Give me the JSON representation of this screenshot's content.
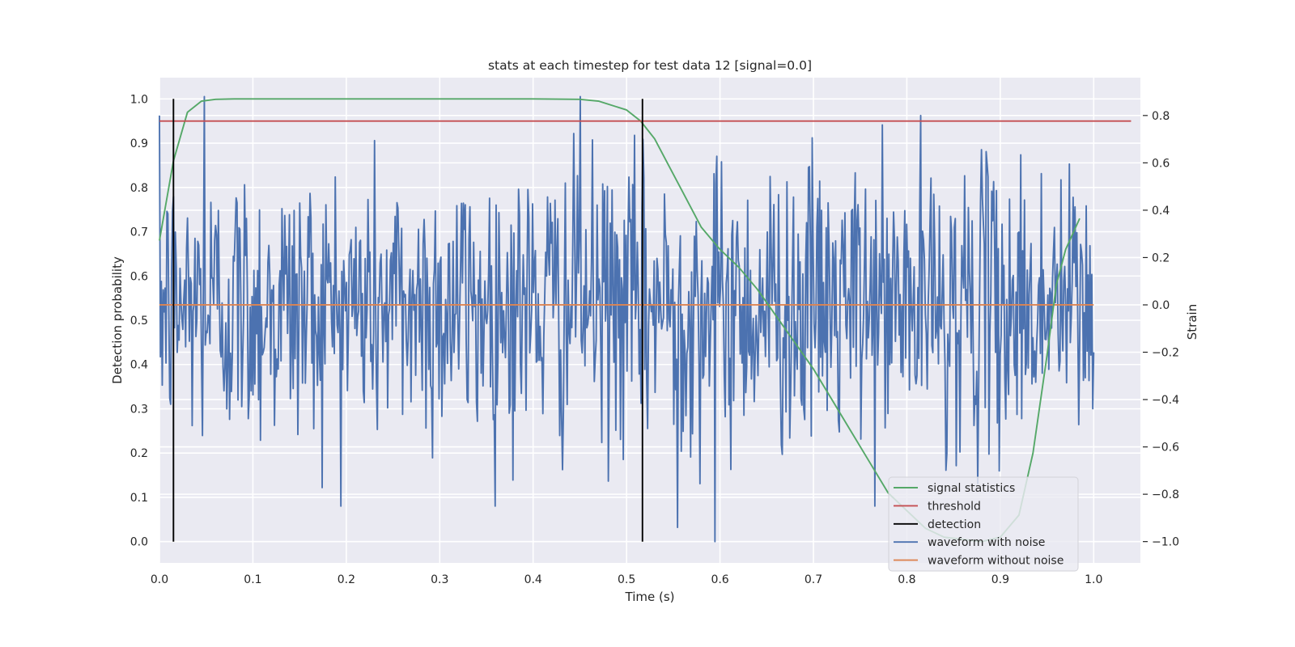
{
  "chart_data": {
    "type": "line",
    "title": "stats at each timestep for test data 12 [signal=0.0]",
    "xlabel": "Time (s)",
    "ylabel": "Detection probability",
    "ylabel_right": "Strain",
    "xlim": [
      0.0,
      1.05
    ],
    "ylim": [
      -0.048,
      1.048
    ],
    "ylim_right": [
      -1.09,
      0.96
    ],
    "x_ticks": [
      0.0,
      0.1,
      0.2,
      0.3,
      0.4,
      0.5,
      0.6,
      0.7,
      0.8,
      0.9,
      1.0
    ],
    "x_tick_labels": [
      "0.0",
      "0.1",
      "0.2",
      "0.3",
      "0.4",
      "0.5",
      "0.6",
      "0.7",
      "0.8",
      "0.9",
      "1.0"
    ],
    "y_ticks": [
      0.0,
      0.1,
      0.2,
      0.3,
      0.4,
      0.5,
      0.6,
      0.7,
      0.8,
      0.9,
      1.0
    ],
    "y_tick_labels": [
      "0.0",
      "0.1",
      "0.2",
      "0.3",
      "0.4",
      "0.5",
      "0.6",
      "0.7",
      "0.8",
      "0.9",
      "1.0"
    ],
    "y_right_ticks": [
      -1.0,
      -0.8,
      -0.6,
      -0.4,
      -0.2,
      0.0,
      0.2,
      0.4,
      0.6,
      0.8
    ],
    "y_right_tick_labels": [
      "−1.0",
      "−0.8",
      "−0.6",
      "−0.4",
      "−0.2",
      "0.0",
      "0.2",
      "0.4",
      "0.6",
      "0.8"
    ],
    "grid": true,
    "legend_position": "lower-right",
    "series": [
      {
        "name": "signal statistics",
        "axis": "left",
        "color": "#55a868",
        "x": [
          0.0,
          0.015,
          0.03,
          0.045,
          0.06,
          0.08,
          0.1,
          0.2,
          0.3,
          0.4,
          0.45,
          0.47,
          0.485,
          0.5,
          0.515,
          0.53,
          0.545,
          0.56,
          0.58,
          0.6,
          0.62,
          0.64,
          0.66,
          0.68,
          0.7,
          0.72,
          0.74,
          0.76,
          0.78,
          0.8,
          0.82,
          0.84,
          0.86,
          0.88,
          0.9,
          0.92,
          0.935,
          0.95,
          0.96,
          0.97,
          0.985
        ],
        "y": [
          0.68,
          0.86,
          0.97,
          0.995,
          0.999,
          1.0,
          1.0,
          1.0,
          1.0,
          1.0,
          0.999,
          0.995,
          0.985,
          0.975,
          0.95,
          0.91,
          0.85,
          0.79,
          0.71,
          0.66,
          0.62,
          0.57,
          0.51,
          0.45,
          0.39,
          0.32,
          0.25,
          0.18,
          0.11,
          0.07,
          0.03,
          0.01,
          0.005,
          0.0,
          0.01,
          0.06,
          0.2,
          0.42,
          0.58,
          0.66,
          0.73
        ]
      },
      {
        "name": "threshold",
        "axis": "left",
        "color": "#c44e52",
        "x": [
          0.0,
          1.04
        ],
        "y": [
          0.95,
          0.95
        ]
      },
      {
        "name": "detection",
        "axis": "left",
        "color": "#000000",
        "x": [
          0.015,
          0.517
        ],
        "y": [
          0.0,
          1.0
        ]
      },
      {
        "name": "waveform with noise",
        "axis": "right",
        "color": "#4c72b0",
        "x_start": 0.0,
        "x_end": 1.0,
        "n_points": 1000,
        "peaks": [
          {
            "x": 0.048,
            "y": 0.88
          },
          {
            "x": 0.45,
            "y": 0.88
          },
          {
            "x": 0.595,
            "y": -1.0
          },
          {
            "x": 0.555,
            "y": -0.94
          }
        ]
      },
      {
        "name": "waveform without noise",
        "axis": "right",
        "color": "#dd8452",
        "x": [
          0.0,
          1.0
        ],
        "y": [
          0.0,
          0.0
        ]
      }
    ]
  }
}
